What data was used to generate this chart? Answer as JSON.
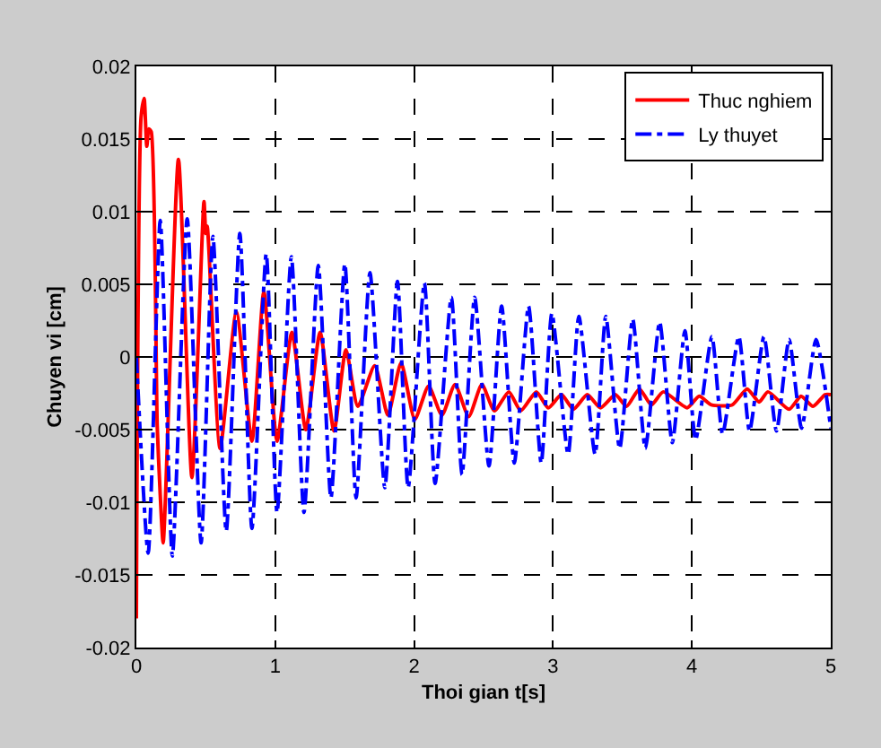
{
  "chart_data": {
    "type": "line",
    "xlabel": "Thoi gian t[s]",
    "ylabel": "Chuyen vi [cm]",
    "xlim": [
      0,
      5
    ],
    "xticks": [
      0,
      1,
      2,
      3,
      4,
      5
    ],
    "ylim": [
      -0.02,
      0.02
    ],
    "yticks": [
      -0.02,
      -0.015,
      -0.01,
      -0.005,
      0,
      0.005,
      0.01,
      0.015,
      0.02
    ],
    "grid": true,
    "legend": "top right",
    "marker": "none",
    "series": [
      {
        "name": "Thuc nghiem",
        "color": "#ff0000",
        "line_style": "solid",
        "x": [
          0,
          0.034,
          0.056,
          0.075,
          0.09,
          0.107,
          0.15,
          0.172,
          0.193,
          0.303,
          0.4,
          0.487,
          0.5,
          0.51,
          0.603,
          0.72,
          0.832,
          0.918,
          1.013,
          1.12,
          1.22,
          1.323,
          1.423,
          1.509,
          1.595,
          1.716,
          1.811,
          1.906,
          2.005,
          2.104,
          2.2,
          2.294,
          2.393,
          2.488,
          2.578,
          2.682,
          2.768,
          2.88,
          2.966,
          3.061,
          3.147,
          3.247,
          3.341,
          3.449,
          3.53,
          3.622,
          3.708,
          3.794,
          3.966,
          4.053,
          4.14,
          4.29,
          4.398,
          4.484,
          4.548,
          4.7,
          4.786,
          4.872,
          4.959,
          5.0
        ],
        "values": [
          -0.018,
          0.0165,
          0.0178,
          0.0145,
          0.0157,
          0.0155,
          -0.0047,
          -0.0095,
          -0.0128,
          0.0136,
          -0.0083,
          0.0107,
          0.0085,
          0.009,
          -0.0063,
          0.0031,
          -0.0058,
          0.0045,
          -0.0058,
          0.0017,
          -0.005,
          0.0017,
          -0.0051,
          0.0005,
          -0.0034,
          -0.0006,
          -0.004,
          -0.0004,
          -0.0043,
          -0.002,
          -0.004,
          -0.0019,
          -0.0041,
          -0.0019,
          -0.0037,
          -0.0024,
          -0.0037,
          -0.0024,
          -0.0035,
          -0.0026,
          -0.0036,
          -0.0026,
          -0.0035,
          -0.0026,
          -0.0034,
          -0.0022,
          -0.0033,
          -0.0024,
          -0.0035,
          -0.0027,
          -0.0033,
          -0.0033,
          -0.0022,
          -0.0031,
          -0.0024,
          -0.0036,
          -0.0027,
          -0.0034,
          -0.0026,
          -0.0026
        ]
      },
      {
        "name": "Ly thuyet",
        "color": "#0000ff",
        "line_style": "dashdot",
        "x": [
          0,
          0.085,
          0.172,
          0.259,
          0.366,
          0.466,
          0.551,
          0.647,
          0.745,
          0.832,
          0.935,
          1.013,
          1.116,
          1.207,
          1.31,
          1.401,
          1.501,
          1.582,
          1.682,
          1.789,
          1.88,
          1.957,
          2.074,
          2.151,
          2.268,
          2.345,
          2.436,
          2.539,
          2.63,
          2.721,
          2.824,
          2.915,
          2.992,
          3.109,
          3.186,
          3.303,
          3.38,
          3.48,
          3.574,
          3.665,
          3.768,
          3.859,
          3.95,
          4.027,
          4.144,
          4.221,
          4.338,
          4.415,
          4.519,
          4.609,
          4.7,
          4.79,
          4.894,
          5.0
        ],
        "values": [
          0,
          -0.0135,
          0.0094,
          -0.0137,
          0.0095,
          -0.0128,
          0.0083,
          -0.012,
          0.0085,
          -0.0118,
          0.0071,
          -0.0107,
          0.0069,
          -0.0107,
          0.0063,
          -0.0097,
          0.0064,
          -0.0097,
          0.0058,
          -0.009,
          0.0052,
          -0.009,
          0.0051,
          -0.0087,
          0.0041,
          -0.0081,
          0.0041,
          -0.0075,
          0.0035,
          -0.0073,
          0.0035,
          -0.0073,
          0.003,
          -0.0067,
          0.0028,
          -0.0067,
          0.0028,
          -0.0063,
          0.0026,
          -0.0063,
          0.0024,
          -0.0059,
          0.0018,
          -0.0057,
          0.0014,
          -0.0053,
          0.0014,
          -0.0051,
          0.0014,
          -0.0051,
          0.0012,
          -0.0049,
          0.0012,
          -0.0049
        ]
      }
    ]
  }
}
